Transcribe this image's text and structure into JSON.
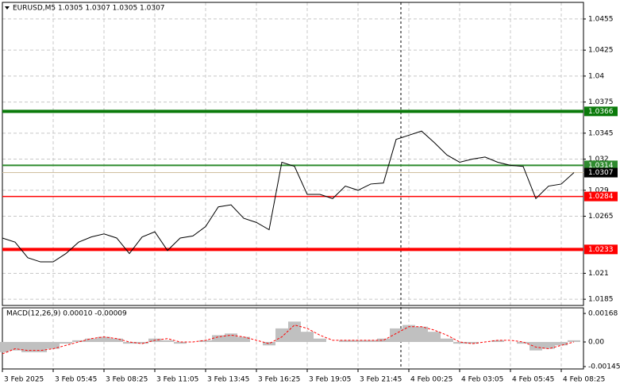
{
  "chart_data": [
    {
      "type": "line",
      "title": "EURUSD,M5  1.0305 1.0307 1.0305 1.0307",
      "color": "#000000",
      "grid": true,
      "categories": [
        "3 Feb 2025",
        null,
        null,
        null,
        "3 Feb 05:45",
        null,
        null,
        null,
        "3 Feb 08:25",
        null,
        null,
        null,
        "3 Feb 11:05",
        null,
        null,
        null,
        "3 Feb 13:45",
        null,
        null,
        null,
        "3 Feb 16:25",
        null,
        null,
        null,
        "3 Feb 19:05",
        null,
        null,
        null,
        "3 Feb 21:45",
        null,
        null,
        null,
        "4 Feb 00:25",
        null,
        null,
        null,
        "4 Feb 03:05",
        null,
        null,
        null,
        "4 Feb 05:45",
        null,
        null,
        null,
        "4 Feb 08:25",
        null
      ],
      "values": [
        1.0244,
        1.024,
        1.0225,
        1.0221,
        1.0221,
        1.0229,
        1.024,
        1.0245,
        1.0248,
        1.0244,
        1.0229,
        1.0245,
        1.025,
        1.0232,
        1.0244,
        1.0246,
        1.0255,
        1.0274,
        1.0276,
        1.0263,
        1.0259,
        1.0252,
        1.0317,
        1.0313,
        1.0286,
        1.0286,
        1.0282,
        1.0294,
        1.029,
        1.0296,
        1.0297,
        1.0339,
        1.0343,
        1.0347,
        1.0336,
        1.0324,
        1.0317,
        1.032,
        1.0322,
        1.0317,
        1.0314,
        1.0313,
        1.0282,
        1.0294,
        1.0296,
        1.0307
      ],
      "ylim": [
        1.0179,
        1.0471
      ],
      "yticks": [
        1.0185,
        1.021,
        1.0265,
        1.029,
        1.032,
        1.0345,
        1.0375,
        1.04,
        1.0425,
        1.0455
      ],
      "levels": [
        {
          "value": 1.0366,
          "color": "#0a7a0a",
          "width": 4
        },
        {
          "value": 1.0314,
          "color": "#2e8b2e",
          "width": 2
        },
        {
          "value": 1.0307,
          "color": "#d0c0a0",
          "width": 1,
          "label_color": "#000000"
        },
        {
          "value": 1.0284,
          "color": "#ff0000",
          "width": 1.5
        },
        {
          "value": 1.0233,
          "color": "#ff0000",
          "width": 4
        }
      ]
    },
    {
      "type": "macd",
      "title": "MACD(12,26,9) 0.00010 -0.00009",
      "series": [
        {
          "color": "#c0c0c0",
          "values": [
            -0.0006,
            -0.0005,
            -0.0006,
            -0.0006,
            -0.0004,
            -0.0001,
            0.0001,
            0.0002,
            0.0003,
            0.0002,
            -0.0001,
            -0.0001,
            0.0002,
            0.0001,
            -0.0001,
            0.0,
            0.0001,
            0.0004,
            0.0005,
            0.0003,
            0.0,
            -0.0002,
            0.0008,
            0.0012,
            0.0006,
            0.0002,
            0.0,
            0.0001,
            0.0001,
            0.0001,
            0.0002,
            0.0008,
            0.001,
            0.0009,
            0.0006,
            0.0002,
            -0.0001,
            -0.0001,
            0.0,
            0.0001,
            0.0,
            -0.0001,
            -0.0005,
            -0.0004,
            -0.0002,
            0.0001
          ]
        },
        {
          "color": "#ff0000",
          "values": [
            -0.0007,
            -0.0004,
            -0.0005,
            -0.0005,
            -0.0004,
            -0.0002,
            0.0,
            0.0002,
            0.0003,
            0.0002,
            0.0,
            -0.0001,
            0.0001,
            0.0002,
            0.0,
            0.0,
            0.0001,
            0.0003,
            0.0004,
            0.0003,
            0.0001,
            -0.0001,
            0.0003,
            0.001,
            0.0008,
            0.0004,
            0.0001,
            0.0001,
            0.0001,
            0.0001,
            0.0001,
            0.0005,
            0.0009,
            0.0009,
            0.0007,
            0.0004,
            0.0,
            -0.0001,
            0.0,
            0.0001,
            0.0001,
            0.0,
            -0.0003,
            -0.0004,
            -0.0002,
            0.0
          ]
        }
      ],
      "ylim": [
        -0.00159,
        0.00201
      ],
      "yticks": [
        0.00168,
        {
          "value": 0,
          "label": "0.00"
        },
        -0.00145
      ]
    }
  ]
}
